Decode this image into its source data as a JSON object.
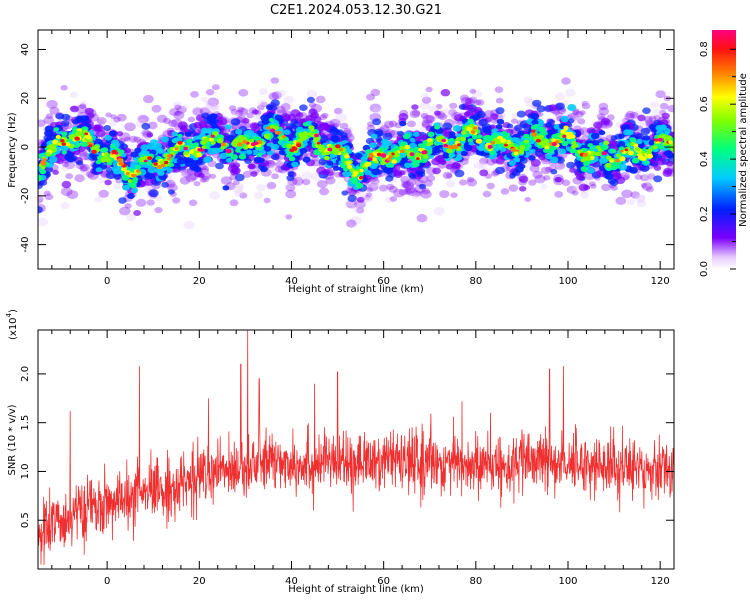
{
  "title": "C2E1.2024.053.12.30.G21",
  "chart_data": [
    {
      "type": "heatmap",
      "xlabel": "Height of straight line (km)",
      "ylabel": "Frequency (Hz)",
      "xlim": [
        -15,
        123
      ],
      "ylim": [
        -50,
        48
      ],
      "xticks": [
        0,
        20,
        40,
        60,
        80,
        100,
        120
      ],
      "yticks": [
        -40,
        -20,
        0,
        20,
        40
      ],
      "colorbar": {
        "label": "Normalized spectral amplitude",
        "range": [
          0,
          0.87
        ],
        "ticks": [
          0.0,
          0.2,
          0.4,
          0.6,
          0.8
        ],
        "colormap": "rainbow"
      },
      "ridge_centre_hz": {
        "x": [
          -15,
          -10,
          -5,
          0,
          5,
          10,
          15,
          20,
          25,
          30,
          35,
          40,
          45,
          50,
          55,
          60,
          65,
          70,
          75,
          80,
          85,
          90,
          95,
          100,
          105,
          110,
          115,
          120,
          123
        ],
        "y": [
          -10,
          4,
          3,
          -3,
          -10,
          -6,
          -2,
          0,
          3,
          -1,
          6,
          1,
          4,
          -3,
          -10,
          -2,
          -4,
          1,
          2,
          6,
          0,
          1,
          3,
          3,
          -4,
          -3,
          -2,
          1,
          2
        ]
      },
      "grid": false
    },
    {
      "type": "line",
      "xlabel": "Height of straight line (km)",
      "ylabel": "SNR (10 * v/v)",
      "yscale_label": "(x10^4)",
      "scale_text": "(x10",
      "scale_exp": "4",
      "xlim": [
        -15,
        123
      ],
      "ylim": [
        0,
        2.45
      ],
      "xticks": [
        0,
        20,
        40,
        60,
        80,
        100,
        120
      ],
      "yticks": [
        0.5,
        1.0,
        1.5,
        2.0
      ],
      "ytick_labels": [
        "0.5",
        "1.0",
        "1.5",
        "2.0"
      ],
      "series": [
        {
          "color": "#f03030",
          "trend_x": [
            -15,
            -10,
            -5,
            0,
            5,
            10,
            15,
            20,
            25,
            30,
            35,
            40,
            50,
            60,
            70,
            80,
            90,
            100,
            110,
            123
          ],
          "trend_y": [
            0.35,
            0.5,
            0.6,
            0.65,
            0.72,
            0.78,
            0.85,
            0.95,
            1.0,
            1.05,
            1.1,
            1.1,
            1.08,
            1.1,
            1.1,
            1.05,
            1.08,
            1.1,
            1.05,
            1.05
          ],
          "peaks_x": [
            -8,
            7,
            22,
            29,
            30.5,
            33,
            45,
            50,
            77,
            96,
            99
          ],
          "peaks_y": [
            1.62,
            2.08,
            1.75,
            2.1,
            2.45,
            1.95,
            1.9,
            2.02,
            1.72,
            2.05,
            2.08
          ]
        }
      ],
      "grid": false
    }
  ]
}
